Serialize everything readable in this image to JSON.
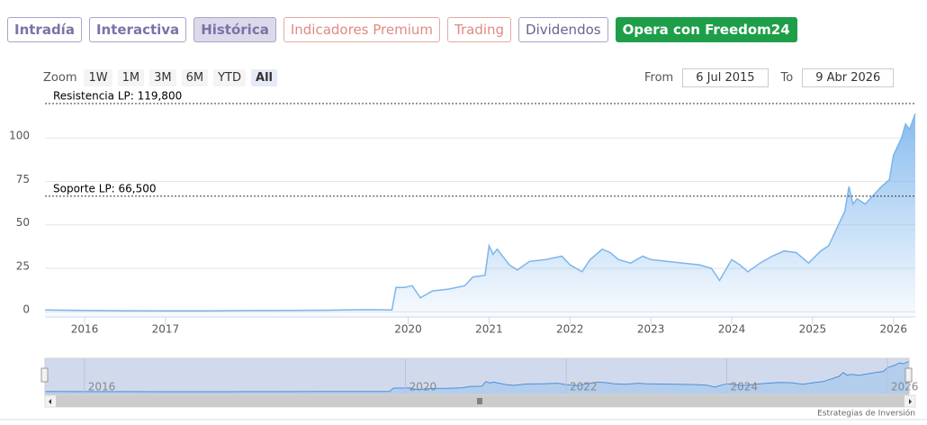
{
  "tabs": [
    "Intradía",
    "Interactiva",
    "Histórica",
    "Indicadores Premium",
    "Trading",
    "Dividendos",
    "Opera con Freedom24"
  ],
  "zoom": {
    "label": "Zoom",
    "buttons": [
      "1W",
      "1M",
      "3M",
      "6M",
      "YTD",
      "All"
    ]
  },
  "range": {
    "from_label": "From",
    "from": "6 Jul 2015",
    "to_label": "To",
    "to": "9 Abr 2026"
  },
  "chart_data": {
    "type": "area",
    "color": "#7cb5ec",
    "x": [
      2015.51,
      2016,
      2016.5,
      2017,
      2017.5,
      2018,
      2018.5,
      2019,
      2019.5,
      2019.8,
      2019.85,
      2019.95,
      2020.05,
      2020.15,
      2020.3,
      2020.5,
      2020.7,
      2020.8,
      2020.95,
      2021.0,
      2021.05,
      2021.1,
      2021.25,
      2021.35,
      2021.5,
      2021.7,
      2021.9,
      2022.0,
      2022.15,
      2022.25,
      2022.4,
      2022.5,
      2022.6,
      2022.75,
      2022.9,
      2023.0,
      2023.2,
      2023.4,
      2023.6,
      2023.75,
      2023.85,
      2024.0,
      2024.1,
      2024.2,
      2024.35,
      2024.5,
      2024.65,
      2024.8,
      2024.95,
      2025.1,
      2025.2,
      2025.3,
      2025.4,
      2025.45,
      2025.5,
      2025.55,
      2025.65,
      2025.75,
      2025.85,
      2025.95,
      2026.0,
      2026.1,
      2026.15,
      2026.2,
      2026.27
    ],
    "values": [
      1.0,
      0.8,
      0.6,
      0.5,
      0.5,
      0.7,
      0.8,
      0.9,
      1.2,
      1.0,
      14,
      14,
      15,
      8,
      12,
      13,
      15,
      20,
      21,
      38,
      33,
      36,
      27,
      24,
      29,
      30,
      32,
      27,
      23,
      30,
      36,
      34,
      30,
      28,
      32,
      30,
      29,
      28,
      27,
      25,
      18,
      30,
      27,
      23,
      28,
      32,
      35,
      34,
      28,
      35,
      38,
      48,
      58,
      72,
      62,
      65,
      62,
      67,
      72,
      76,
      90,
      100,
      108,
      105,
      114
    ],
    "xlim": [
      2015.51,
      2026.27
    ],
    "ylim": [
      -3,
      125
    ],
    "xticks": [
      2016,
      2017,
      2020,
      2021,
      2022,
      2023,
      2024,
      2025,
      2026
    ],
    "yticks": [
      0,
      25,
      50,
      75,
      100
    ],
    "grid": true,
    "plot_lines": [
      {
        "value": 119.8,
        "label": "Resistencia LP: 119,800"
      },
      {
        "value": 66.5,
        "label": "Soporte LP: 66,500"
      }
    ],
    "navigator": {
      "xticks": [
        2016,
        2020,
        2022,
        2024,
        2026
      ]
    }
  },
  "credit": "Estrategias de Inversión"
}
